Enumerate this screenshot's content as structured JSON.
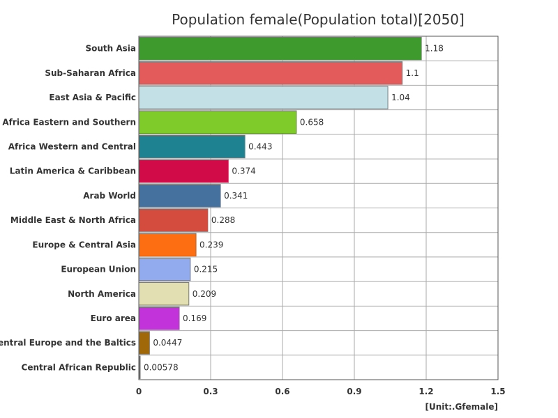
{
  "chart_data": {
    "type": "bar",
    "orientation": "horizontal",
    "title": "Population female(Population total)[2050]",
    "unit": "[Unit:.Gfemale]",
    "xlim": [
      0,
      1.5
    ],
    "xticks": [
      {
        "value": 0,
        "label": "0"
      },
      {
        "value": 0.3,
        "label": "0.3"
      },
      {
        "value": 0.6,
        "label": "0.6"
      },
      {
        "value": 0.9,
        "label": "0.9"
      },
      {
        "value": 1.2,
        "label": "1.2"
      },
      {
        "value": 1.5,
        "label": "1.5"
      }
    ],
    "grid": true,
    "categories": [
      "South Asia",
      "Sub-Saharan Africa",
      "East Asia & Pacific",
      "Africa Eastern and Southern",
      "Africa Western and Central",
      "Latin America & Caribbean",
      "Arab World",
      "Middle East & North Africa",
      "Europe & Central Asia",
      "European Union",
      "North America",
      "Euro area",
      "Central Europe and the Baltics",
      "Central African Republic"
    ],
    "values": [
      1.18,
      1.1,
      1.04,
      0.658,
      0.443,
      0.374,
      0.341,
      0.288,
      0.239,
      0.215,
      0.209,
      0.169,
      0.0447,
      0.00578
    ],
    "value_labels": [
      "1.18",
      "1.1",
      "1.04",
      "0.658",
      "0.443",
      "0.374",
      "0.341",
      "0.288",
      "0.239",
      "0.215",
      "0.209",
      "0.169",
      "0.0447",
      "0.00578"
    ],
    "colors": [
      "#3f9a2e",
      "#e35b5b",
      "#c2e0e6",
      "#7fcb2a",
      "#1e8290",
      "#d10b48",
      "#45719e",
      "#d44c3e",
      "#fd6d12",
      "#92aaee",
      "#e2e0b2",
      "#c233d9",
      "#a1680a",
      "#666666"
    ]
  }
}
